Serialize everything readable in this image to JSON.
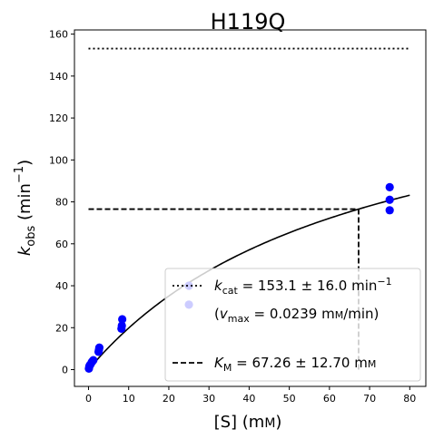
{
  "chart_data": {
    "type": "scatter",
    "title": "H119Q",
    "xlabel": {
      "main": "[S] (m",
      "unit_sc": "M",
      "close": ")"
    },
    "ylabel": {
      "main": "k",
      "sub": "obs",
      "unit": " (min",
      "sup": "−1",
      "close": ")"
    },
    "xlim": [
      -3.5,
      84
    ],
    "ylim": [
      -8,
      162
    ],
    "xticks": [
      0,
      10,
      20,
      30,
      40,
      50,
      60,
      70,
      80
    ],
    "yticks": [
      0,
      20,
      40,
      60,
      80,
      100,
      120,
      140,
      160
    ],
    "grid": false,
    "legend_placement": "lower-right",
    "colors": {
      "points": "#0000ff",
      "fit": "#000000",
      "kcat_line": "#000000",
      "km_line": "#000000"
    },
    "series": [
      {
        "kind": "points",
        "x": [
          0.1,
          0.2,
          0.3,
          0.5,
          0.8,
          1.0,
          1.2,
          2.5,
          2.6,
          2.7,
          8.2,
          8.3,
          8.4,
          25,
          25,
          75,
          75,
          75
        ],
        "y": [
          0.5,
          1.5,
          2.0,
          2.5,
          3.5,
          4.0,
          4.5,
          8.5,
          9.5,
          10.5,
          19.5,
          21.0,
          24.0,
          31,
          40,
          76,
          81,
          87
        ]
      },
      {
        "kind": "fit_curve",
        "model": "michaelis-menten",
        "kcat": 153.1,
        "KM": 67.26,
        "x_range": [
          0,
          80
        ]
      }
    ],
    "reference_lines": {
      "kcat": {
        "y": 153.1,
        "x_range": [
          0,
          80
        ],
        "style": "dotted"
      },
      "km": {
        "x": 67.26,
        "y": 76.55,
        "x_start": 0,
        "y_start": 0,
        "style": "dashed"
      }
    },
    "legend": [
      {
        "style": "dotted",
        "symbol": "k",
        "sub": "cat",
        "text": " = 153.1 ± 16.0 min",
        "sup": "−1"
      },
      {
        "style": "none",
        "open": "(",
        "symbol": "v",
        "sub": "max",
        "text": " = 0.0239 m",
        "unit_sc": "M",
        "close": "/min)"
      },
      {
        "style": "dashed",
        "symbol": "K",
        "sub": "M",
        "text": " = 67.26 ± 12.70 m",
        "unit_sc": "M"
      }
    ]
  }
}
